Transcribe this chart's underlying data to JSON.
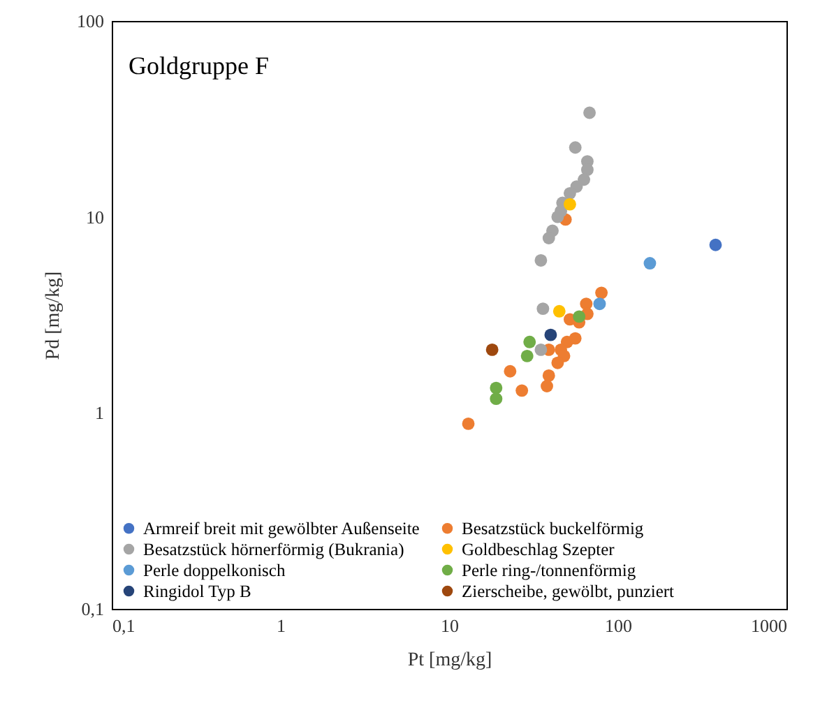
{
  "chart_data": {
    "type": "scatter",
    "title": "Goldgruppe F",
    "xlabel": "Pt [mg/kg]",
    "ylabel": "Pd [mg/kg]",
    "log": "xy",
    "xlim": [
      0.1,
      1000
    ],
    "ylim": [
      0.1,
      100
    ],
    "xticks": [
      {
        "value": 0.1,
        "label": "0,1"
      },
      1,
      10,
      100,
      1000
    ],
    "yticks": [
      {
        "value": 0.1,
        "label": "0,1"
      },
      1,
      10,
      100
    ],
    "grid": false,
    "legend": "bottom",
    "marker": "circle",
    "series": [
      {
        "name": "Armreif breit mit gewölbter Außenseite",
        "color": "#4472c4",
        "x": [
          380
        ],
        "values": [
          7.2
        ]
      },
      {
        "name": "Besatzstück buckelförmig",
        "color": "#ed7d31",
        "x": [
          49,
          80,
          52,
          65,
          66,
          59,
          50,
          56,
          46,
          48,
          44,
          39,
          23,
          39,
          38,
          27,
          13
        ],
        "values": [
          9.7,
          4.1,
          3.0,
          3.6,
          3.2,
          2.9,
          2.3,
          2.4,
          2.1,
          1.95,
          1.8,
          2.1,
          1.63,
          1.55,
          1.37,
          1.3,
          0.88
        ]
      },
      {
        "name": "Besatzstück hörnerförmig (Bukrania)",
        "color": "#a5a5a5",
        "x": [
          68,
          56,
          66,
          66,
          63,
          57,
          52,
          47,
          46,
          44,
          41,
          39,
          35,
          36,
          35
        ],
        "values": [
          34,
          22.6,
          19.2,
          17.4,
          15.5,
          14.3,
          13.2,
          11.8,
          10.7,
          10,
          8.5,
          7.8,
          6.0,
          3.4,
          2.1
        ]
      },
      {
        "name": "Goldbeschlag Szepter",
        "color": "#ffc000",
        "x": [
          52,
          45
        ],
        "values": [
          11.6,
          3.3
        ]
      },
      {
        "name": "Perle doppelkonisch",
        "color": "#5b9bd5",
        "x": [
          155,
          78
        ],
        "values": [
          5.8,
          3.6
        ]
      },
      {
        "name": "Perle ring-/tonnenförmig",
        "color": "#70ad47",
        "x": [
          59,
          30,
          29,
          19,
          19
        ],
        "values": [
          3.1,
          2.3,
          1.95,
          1.34,
          1.18
        ]
      },
      {
        "name": "Ringidol Typ B",
        "color": "#264478",
        "x": [
          40
        ],
        "values": [
          2.5
        ]
      },
      {
        "name": "Zierscheibe, gewölbt, punziert",
        "color": "#9e480e",
        "x": [
          18
        ],
        "values": [
          2.1
        ]
      }
    ]
  }
}
